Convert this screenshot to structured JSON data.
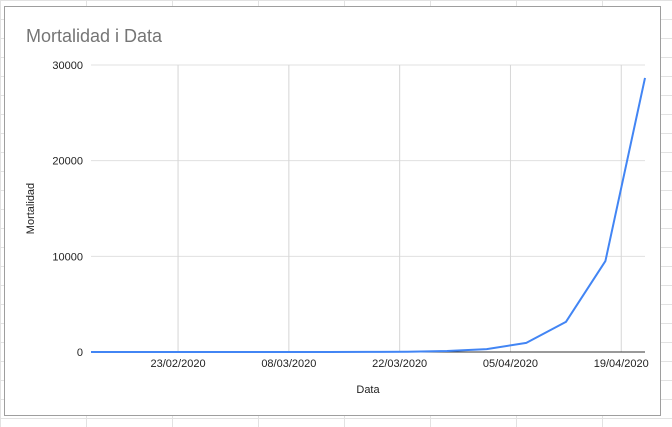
{
  "chart_data": {
    "type": "line",
    "title": "Mortalidad i Data",
    "xlabel": "Data",
    "ylabel": "Mortalidad",
    "ylim": [
      0,
      30000
    ],
    "yticks": [
      "0",
      "10000",
      "20000",
      "30000"
    ],
    "yticks_values": [
      0,
      10000,
      20000,
      30000
    ],
    "xticks": [
      "23/02/2020",
      "08/03/2020",
      "22/03/2020",
      "05/04/2020",
      "19/04/2020"
    ],
    "xlim": [
      "2020-02-12",
      "2020-04-22"
    ],
    "grid": true,
    "legend": "none",
    "line_color": "#4285f4",
    "series": [
      {
        "x": [
          "2020-02-12",
          "2020-02-17",
          "2020-02-22",
          "2020-02-27",
          "2020-03-03",
          "2020-03-08",
          "2020-03-13",
          "2020-03-18",
          "2020-03-23",
          "2020-03-28",
          "2020-04-02",
          "2020-04-07",
          "2020-04-12",
          "2020-04-17",
          "2020-04-22"
        ],
        "values": [
          0,
          0,
          0,
          0,
          0,
          0,
          2,
          10,
          30,
          100,
          300,
          950,
          3150,
          9500,
          28650
        ]
      }
    ]
  }
}
